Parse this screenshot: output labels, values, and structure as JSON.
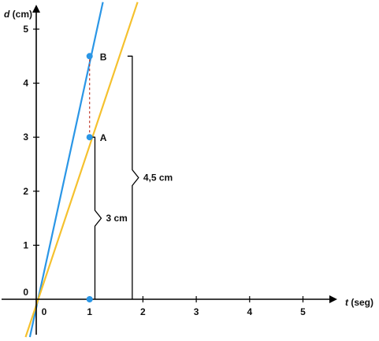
{
  "chart_data": {
    "type": "line",
    "xlabel_var": "t",
    "xlabel_unit": " (seg)",
    "ylabel_var": "d",
    "ylabel_unit": " (cm)",
    "xlim": [
      -0.15,
      5.7
    ],
    "ylim": [
      -0.75,
      5.5
    ],
    "x_ticks": [
      0,
      1,
      2,
      3,
      4,
      5
    ],
    "y_ticks": [
      0,
      1,
      2,
      3,
      4,
      5
    ],
    "grid": false,
    "series": [
      {
        "color": "#2a96e6",
        "points": [
          [
            -0.12,
            -0.7
          ],
          [
            1.25,
            5.5
          ]
        ]
      },
      {
        "color": "#f5c12e",
        "points": [
          [
            -0.2,
            -0.7
          ],
          [
            1.9,
            5.5
          ]
        ]
      }
    ],
    "points": [
      {
        "label": "B",
        "x": 1,
        "y": 4.5
      },
      {
        "label": "A",
        "x": 1,
        "y": 3
      },
      {
        "label": "",
        "x": 1,
        "y": 0
      }
    ],
    "annotations": [
      {
        "text": "3 cm",
        "x": 1.1,
        "y_from": 0,
        "y_to": 3
      },
      {
        "text": "4,5 cm",
        "x": 1.8,
        "y_from": 0,
        "y_to": 4.5
      }
    ],
    "dashed_connector": {
      "x": 1,
      "y_from": 3,
      "y_to": 4.5,
      "color": "#c0392b"
    },
    "colors": {
      "axis": "#000000",
      "point": "#2a96e6"
    }
  }
}
